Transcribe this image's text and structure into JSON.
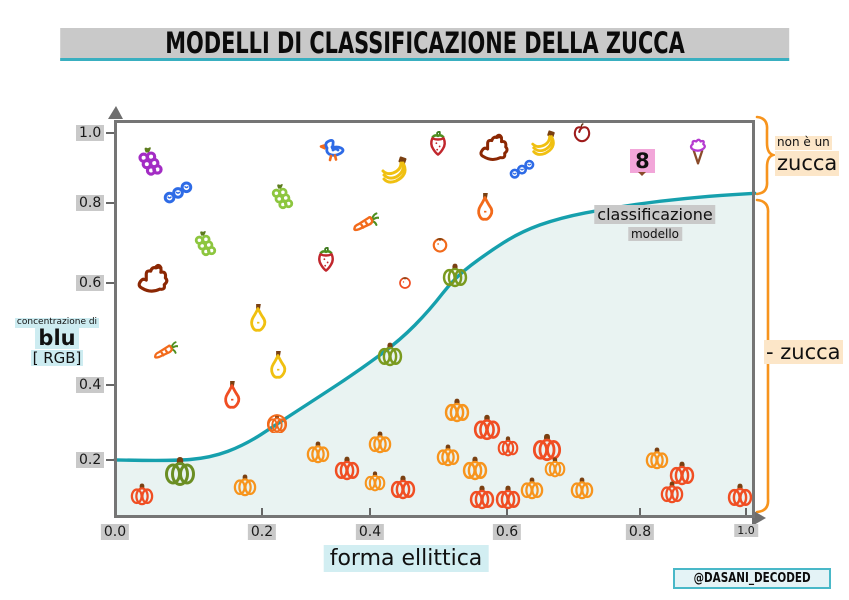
{
  "title": "MODELLI DI CLASSIFICAZIONE DELLA ZUCCA",
  "watermark": "@DASANI_DECODED",
  "colors": {
    "curve": "#16a0ad",
    "curve_fill": "#e9f3f2",
    "axis": "#757575",
    "bracket": "#f7941d",
    "tick_bg": "#c9c9c9",
    "cyan_bg": "#cdecf1",
    "peach_bg": "#fce6c8",
    "pink_bg": "#f2a6d9"
  },
  "axes": {
    "x_label": "forma ellittica",
    "y_label_line1": "concentrazione di",
    "y_label_line2": "blu",
    "y_label_line3": "[ RGB]",
    "x_ticks": [
      "0.0",
      "0.2",
      "0.4",
      "0.6",
      "0.8",
      "1.0"
    ],
    "y_ticks": [
      "1.0",
      "0.8",
      "0.6",
      "0.4",
      "0.2"
    ]
  },
  "annotations": {
    "right_top_line1": "non è un",
    "right_top_line2": "zucca",
    "right_bottom": "- zucca",
    "model_line1": "classificazione",
    "model_line2": "modello"
  },
  "chart_data": {
    "type": "scatter",
    "title": "MODELLI DI CLASSIFICAZIONE DELLA ZUCCA",
    "xlabel": "forma ellittica",
    "ylabel": "concentrazione di blu [RGB]",
    "xlim": [
      0,
      1.0
    ],
    "ylim": [
      0.06,
      1.04
    ],
    "x_tick_values": [
      0,
      0.2,
      0.4,
      0.6,
      0.8,
      1.0
    ],
    "y_tick_values": [
      0.2,
      0.4,
      0.6,
      0.8,
      1.0
    ],
    "legend": "none",
    "grid": false,
    "curve": {
      "name": "classificazione modello (sigmoid decision boundary)",
      "color": "#16a0ad",
      "fill_below": "#e9f3f2",
      "points": [
        [
          0.0,
          0.202
        ],
        [
          0.087,
          0.199
        ],
        [
          0.151,
          0.207
        ],
        [
          0.206,
          0.239
        ],
        [
          0.257,
          0.29
        ],
        [
          0.325,
          0.358
        ],
        [
          0.388,
          0.422
        ],
        [
          0.452,
          0.495
        ],
        [
          0.499,
          0.569
        ],
        [
          0.539,
          0.649
        ],
        [
          0.59,
          0.708
        ],
        [
          0.642,
          0.759
        ],
        [
          0.705,
          0.794
        ],
        [
          0.785,
          0.818
        ],
        [
          0.864,
          0.835
        ],
        [
          0.943,
          0.847
        ],
        [
          1.014,
          0.854
        ]
      ]
    },
    "points": [
      {
        "t": "grapes",
        "x": 0.055,
        "y": 0.93,
        "c": "#a32cc4",
        "s": 34
      },
      {
        "t": "berries",
        "x": 0.1,
        "y": 0.86,
        "c": "#2e6be6",
        "s": 30
      },
      {
        "t": "duck",
        "x": 0.345,
        "y": 0.965,
        "c": "#2e6be6",
        "s": 32
      },
      {
        "t": "grapes",
        "x": 0.265,
        "y": 0.845,
        "c": "#8dc63f",
        "s": 30
      },
      {
        "t": "grapes",
        "x": 0.142,
        "y": 0.73,
        "c": "#8dc63f",
        "s": 30
      },
      {
        "t": "dog",
        "x": 0.06,
        "y": 0.645,
        "c": "#8b2703",
        "s": 36
      },
      {
        "t": "strawberry",
        "x": 0.335,
        "y": 0.69,
        "c": "#c1272d",
        "s": 26
      },
      {
        "t": "banana",
        "x": 0.444,
        "y": 0.906,
        "c": "#f0c011",
        "s": 32
      },
      {
        "t": "strawberry",
        "x": 0.512,
        "y": 0.975,
        "c": "#c1272d",
        "s": 26
      },
      {
        "t": "dog",
        "x": 0.6,
        "y": 0.965,
        "c": "#8b2703",
        "s": 34
      },
      {
        "t": "berries",
        "x": 0.645,
        "y": 0.915,
        "c": "#2e6be6",
        "s": 26
      },
      {
        "t": "banana",
        "x": 0.68,
        "y": 0.972,
        "c": "#f0c011",
        "s": 30
      },
      {
        "t": "apple",
        "x": 0.74,
        "y": 1.0,
        "c": "#9e1b1b",
        "s": 22
      },
      {
        "t": "eight",
        "x": 0.837,
        "y": 0.92,
        "c": "#111111",
        "s": 26,
        "label": "8"
      },
      {
        "t": "icecream",
        "x": 0.924,
        "y": 0.955,
        "c": "#b53bd0",
        "s": 28
      },
      {
        "t": "carrot",
        "x": 0.396,
        "y": 0.78,
        "c": "#f26a1b",
        "s": 28
      },
      {
        "t": "tomato",
        "x": 0.515,
        "y": 0.73,
        "c": "#f26a1b",
        "s": 20
      },
      {
        "t": "pear",
        "x": 0.586,
        "y": 0.82,
        "c": "#f26a1b",
        "s": 30
      },
      {
        "t": "tomato",
        "x": 0.46,
        "y": 0.637,
        "c": "#f04e23",
        "s": 16
      },
      {
        "t": "pear",
        "x": 0.227,
        "y": 0.55,
        "c": "#f0c011",
        "s": 30
      },
      {
        "t": "pear",
        "x": 0.258,
        "y": 0.435,
        "c": "#f0c011",
        "s": 30
      },
      {
        "t": "carrot",
        "x": 0.079,
        "y": 0.466,
        "c": "#f26a1b",
        "s": 26
      },
      {
        "t": "pear",
        "x": 0.185,
        "y": 0.36,
        "c": "#f04e23",
        "s": 30
      },
      {
        "t": "pumpkin",
        "x": 0.539,
        "y": 0.655,
        "c": "#7a9a1f",
        "s": 26
      },
      {
        "t": "pumpkin",
        "x": 0.436,
        "y": 0.46,
        "c": "#7a9a1f",
        "s": 26
      },
      {
        "t": "pumpkin",
        "x": 0.103,
        "y": 0.175,
        "c": "#6b8e23",
        "s": 32
      },
      {
        "t": "pumpkin",
        "x": 0.257,
        "y": 0.292,
        "c": "#f26a1b",
        "s": 20,
        "ring": true
      },
      {
        "t": "pumpkin",
        "x": 0.043,
        "y": 0.119,
        "c": "#f04e23",
        "s": 24
      },
      {
        "t": "pumpkin",
        "x": 0.206,
        "y": 0.141,
        "c": "#f7941d",
        "s": 24
      },
      {
        "t": "pumpkin",
        "x": 0.322,
        "y": 0.221,
        "c": "#f7941d",
        "s": 24
      },
      {
        "t": "pumpkin",
        "x": 0.368,
        "y": 0.182,
        "c": "#f04e23",
        "s": 26
      },
      {
        "t": "pumpkin",
        "x": 0.42,
        "y": 0.246,
        "c": "#f7941d",
        "s": 24
      },
      {
        "t": "pumpkin",
        "x": 0.456,
        "y": 0.136,
        "c": "#f04e23",
        "s": 26
      },
      {
        "t": "pumpkin",
        "x": 0.412,
        "y": 0.15,
        "c": "#f7941d",
        "s": 22
      },
      {
        "t": "pumpkin",
        "x": 0.542,
        "y": 0.324,
        "c": "#f7941d",
        "s": 26
      },
      {
        "t": "pumpkin",
        "x": 0.59,
        "y": 0.283,
        "c": "#f04e23",
        "s": 28
      },
      {
        "t": "pumpkin",
        "x": 0.528,
        "y": 0.214,
        "c": "#f7941d",
        "s": 24
      },
      {
        "t": "pumpkin",
        "x": 0.623,
        "y": 0.236,
        "c": "#f04e23",
        "s": 22
      },
      {
        "t": "pumpkin",
        "x": 0.685,
        "y": 0.234,
        "c": "#f04e23",
        "s": 30
      },
      {
        "t": "pumpkin",
        "x": 0.571,
        "y": 0.182,
        "c": "#f7941d",
        "s": 26
      },
      {
        "t": "pumpkin",
        "x": 0.697,
        "y": 0.185,
        "c": "#f7941d",
        "s": 22
      },
      {
        "t": "pumpkin",
        "x": 0.582,
        "y": 0.111,
        "c": "#f04e23",
        "s": 26
      },
      {
        "t": "pumpkin",
        "x": 0.623,
        "y": 0.111,
        "c": "#f04e23",
        "s": 26
      },
      {
        "t": "pumpkin",
        "x": 0.661,
        "y": 0.133,
        "c": "#f7941d",
        "s": 24
      },
      {
        "t": "pumpkin",
        "x": 0.74,
        "y": 0.133,
        "c": "#f7941d",
        "s": 24
      },
      {
        "t": "pumpkin",
        "x": 0.859,
        "y": 0.207,
        "c": "#f7941d",
        "s": 24
      },
      {
        "t": "pumpkin",
        "x": 0.899,
        "y": 0.17,
        "c": "#f04e23",
        "s": 26
      },
      {
        "t": "pumpkin",
        "x": 0.883,
        "y": 0.124,
        "c": "#f04e23",
        "s": 24
      },
      {
        "t": "pumpkin",
        "x": 0.99,
        "y": 0.116,
        "c": "#f04e23",
        "s": 26
      }
    ]
  }
}
